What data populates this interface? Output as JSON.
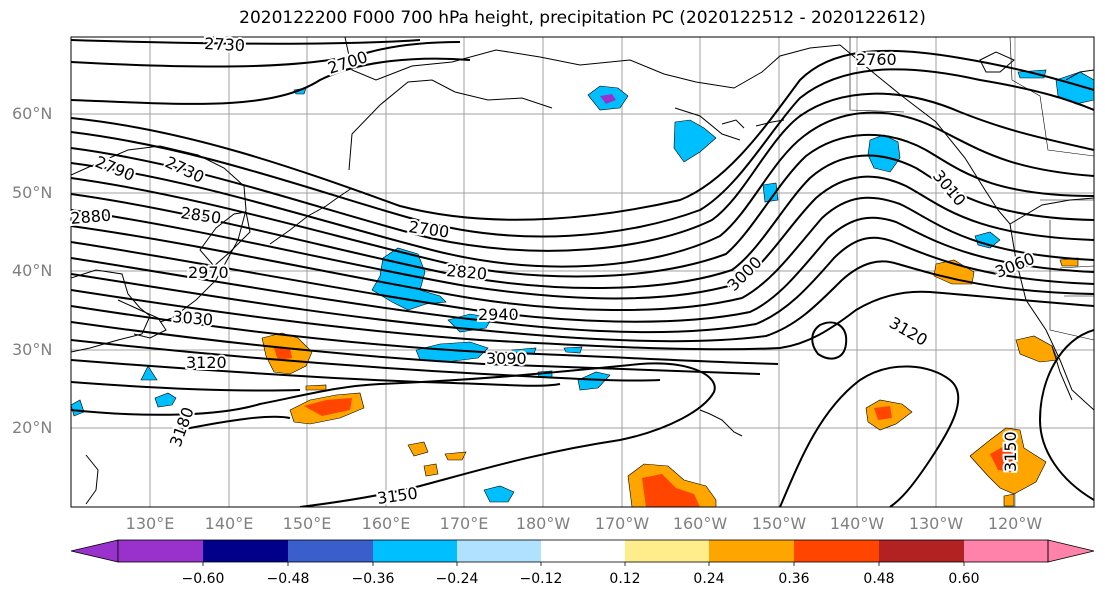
{
  "title": "2020122200 F000 700 hPa height, precipitation PC (2020122512 - 2020122612)",
  "lat_labels": [
    "60°N",
    "50°N",
    "40°N",
    "30°N",
    "20°N"
  ],
  "lon_labels": [
    "130°E",
    "140°E",
    "150°E",
    "160°E",
    "170°E",
    "180°W",
    "170°W",
    "160°W",
    "150°W",
    "140°W",
    "130°W",
    "120°W"
  ],
  "contour_labels": [
    "2730",
    "2700",
    "2760",
    "2790",
    "2730",
    "2880",
    "2850",
    "2700",
    "2970",
    "2820",
    "3000",
    "3060",
    "3030",
    "2940",
    "3120",
    "3120",
    "3090",
    "3180",
    "3150",
    "3150",
    "3010"
  ],
  "colorbar": {
    "tick_labels": [
      "−0.60",
      "−0.48",
      "−0.36",
      "−0.24",
      "−0.12",
      "0.12",
      "0.24",
      "0.36",
      "0.48",
      "0.60"
    ],
    "colors": [
      "#9932cc",
      "#00008b",
      "#3a5fcd",
      "#00bfff",
      "#b0e2ff",
      "#ffffff",
      "#ffec8b",
      "#ffa500",
      "#ff4500",
      "#b22222",
      "#ff82ab"
    ]
  },
  "colors": {
    "frame": "#000000",
    "grid": "#a0a0a0",
    "axis_label": "#808080"
  }
}
